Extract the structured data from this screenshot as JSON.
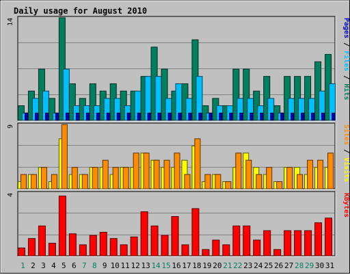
{
  "chart_data": {
    "type": "bar",
    "title": "Daily usage for August 2010",
    "categories": [
      "1",
      "2",
      "3",
      "4",
      "5",
      "6",
      "7",
      "8",
      "9",
      "10",
      "11",
      "12",
      "13",
      "14",
      "15",
      "16",
      "17",
      "18",
      "19",
      "20",
      "21",
      "22",
      "23",
      "24",
      "25",
      "26",
      "27",
      "28",
      "29",
      "30",
      "31"
    ],
    "weekend_days": [
      "1",
      "7",
      "8",
      "14",
      "15",
      "21",
      "22",
      "28",
      "29"
    ],
    "colors": {
      "background": "#c0c0c0",
      "title": "#0000cc",
      "hits": "#007f5f",
      "files": "#00bfff",
      "pages": "#0000cc",
      "visits": "#ffff00",
      "sites": "#ff8c00",
      "kbytes": "#ff0000",
      "weekday_label": "#000000",
      "weekend_label": "#007f5f"
    },
    "panels": [
      {
        "id": "hits-files-pages",
        "ymax_label": "14",
        "ylim": [
          0,
          14
        ],
        "legend": [
          {
            "key": "pages",
            "label": "Pages"
          },
          {
            "key": "files",
            "label": "Files"
          },
          {
            "key": "hits",
            "label": "Hits"
          }
        ],
        "series": [
          {
            "key": "hits",
            "values": [
              2,
              4,
              7,
              3,
              14,
              5,
              3,
              5,
              4,
              5,
              4,
              4,
              6,
              10,
              7,
              4,
              5,
              11,
              2,
              3,
              2,
              7,
              7,
              4,
              6,
              2,
              6,
              6,
              6,
              8,
              9
            ]
          },
          {
            "key": "files",
            "values": [
              1,
              3,
              4,
              1,
              7,
              2,
              2,
              2,
              3,
              3,
              2,
              4,
              6,
              6,
              3,
              5,
              3,
              6,
              1,
              2,
              2,
              3,
              3,
              2,
              3,
              1,
              3,
              3,
              3,
              4,
              5
            ]
          },
          {
            "key": "pages",
            "values": [
              1,
              1,
              1,
              1,
              1,
              1,
              1,
              1,
              1,
              1,
              1,
              1,
              1,
              1,
              1,
              1,
              1,
              1,
              1,
              1,
              1,
              1,
              1,
              1,
              1,
              1,
              1,
              1,
              1,
              1,
              1
            ]
          }
        ]
      },
      {
        "id": "visits-sites",
        "ymax_label": "9",
        "ylim": [
          0,
          9
        ],
        "legend": [
          {
            "key": "sites",
            "label": "Sites"
          },
          {
            "key": "visits",
            "label": "Visits"
          }
        ],
        "series": [
          {
            "key": "visits",
            "values": [
              1,
              2,
              3,
              1,
              7,
              2,
              2,
              3,
              3,
              2,
              3,
              3,
              5,
              4,
              3,
              3,
              4,
              6,
              1,
              2,
              1,
              3,
              5,
              3,
              2,
              1,
              3,
              3,
              2,
              3,
              3
            ]
          },
          {
            "key": "sites",
            "values": [
              2,
              2,
              3,
              2,
              9,
              3,
              2,
              3,
              4,
              3,
              3,
              5,
              5,
              4,
              4,
              5,
              2,
              7,
              2,
              2,
              1,
              5,
              4,
              2,
              3,
              1,
              3,
              2,
              4,
              4,
              5
            ]
          }
        ]
      },
      {
        "id": "kbytes",
        "ymax_label": "4",
        "ylim": [
          0,
          4
        ],
        "legend": [
          {
            "key": "kbytes",
            "label": "KBytes"
          }
        ],
        "series": [
          {
            "key": "kbytes",
            "values": [
              0.5,
              1.1,
              1.9,
              0.8,
              3.8,
              1.4,
              0.7,
              1.3,
              1.5,
              1.1,
              0.7,
              1.2,
              2.8,
              1.9,
              1.3,
              2.5,
              0.7,
              3.0,
              0.4,
              1.0,
              0.7,
              1.9,
              1.9,
              1.0,
              1.6,
              0.4,
              1.6,
              1.6,
              1.6,
              2.1,
              2.4
            ]
          }
        ]
      }
    ]
  }
}
